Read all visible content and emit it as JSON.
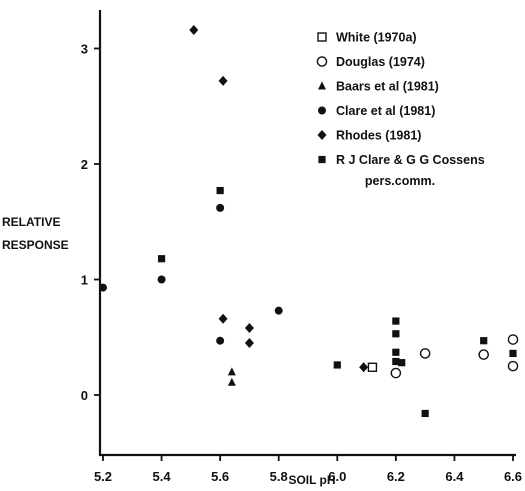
{
  "chart_data": {
    "type": "scatter",
    "xlabel": "SOIL pH",
    "ylabel": [
      "RELATIVE",
      "RESPONSE"
    ],
    "xlim": [
      5.2,
      6.6
    ],
    "ylim": [
      -0.2,
      3.3
    ],
    "x_ticks": [
      {
        "value": 5.2,
        "label": "5.2"
      },
      {
        "value": 5.4,
        "label": "5.4"
      },
      {
        "value": 5.6,
        "label": "5.6"
      },
      {
        "value": 5.8,
        "label": "5.8"
      },
      {
        "value": 6.0,
        "label": "6.0"
      },
      {
        "value": 6.2,
        "label": "6.2"
      },
      {
        "value": 6.4,
        "label": "6.4"
      },
      {
        "value": 6.6,
        "label": "6.6"
      }
    ],
    "y_ticks": [
      {
        "value": 0,
        "label": "0"
      },
      {
        "value": 1,
        "label": "1"
      },
      {
        "value": 2,
        "label": "2"
      },
      {
        "value": 3,
        "label": "3"
      }
    ],
    "grid": false,
    "legend_position": "top-right",
    "series": [
      {
        "name": "White (1970a)",
        "marker": "open-square",
        "points": [
          [
            6.12,
            0.24
          ]
        ]
      },
      {
        "name": "Douglas (1974)",
        "marker": "open-circle",
        "points": [
          [
            6.2,
            0.19
          ],
          [
            6.3,
            0.36
          ],
          [
            6.5,
            0.35
          ],
          [
            6.6,
            0.48
          ],
          [
            6.6,
            0.25
          ]
        ]
      },
      {
        "name": "Baars et al (1981)",
        "marker": "filled-triangle",
        "points": [
          [
            5.64,
            0.2
          ],
          [
            5.64,
            0.11
          ]
        ]
      },
      {
        "name": "Clare et al (1981)",
        "marker": "filled-circle",
        "points": [
          [
            5.2,
            0.93
          ],
          [
            5.4,
            1.0
          ],
          [
            5.6,
            1.62
          ],
          [
            5.6,
            0.47
          ],
          [
            5.8,
            0.73
          ]
        ]
      },
      {
        "name": "Rhodes (1981)",
        "marker": "filled-diamond",
        "points": [
          [
            5.51,
            3.16
          ],
          [
            5.61,
            2.72
          ],
          [
            5.61,
            0.66
          ],
          [
            5.7,
            0.58
          ],
          [
            5.7,
            0.45
          ],
          [
            6.09,
            0.24
          ]
        ]
      },
      {
        "name": "R J Clare & G G Cossens",
        "name_line2": "pers.comm.",
        "marker": "filled-square",
        "points": [
          [
            5.4,
            1.18
          ],
          [
            5.6,
            1.77
          ],
          [
            6.0,
            0.26
          ],
          [
            6.2,
            0.64
          ],
          [
            6.2,
            0.53
          ],
          [
            6.2,
            0.37
          ],
          [
            6.2,
            0.29
          ],
          [
            6.22,
            0.28
          ],
          [
            6.3,
            -0.16
          ],
          [
            6.5,
            0.47
          ],
          [
            6.6,
            0.36
          ]
        ]
      }
    ]
  }
}
